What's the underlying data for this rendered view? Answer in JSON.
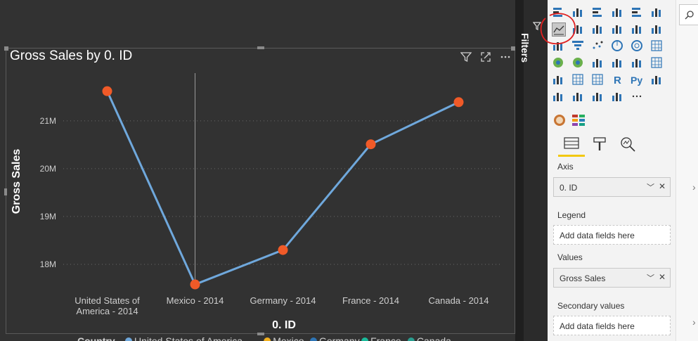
{
  "visual": {
    "title": "Gross Sales by 0. ID"
  },
  "chart_data": {
    "type": "line",
    "title": "Gross Sales by 0. ID",
    "xlabel": "0. ID",
    "ylabel": "Gross Sales",
    "categories": [
      "United States of America - 2014",
      "Mexico - 2014",
      "Germany - 2014",
      "France - 2014",
      "Canada - 2014"
    ],
    "category_lines": [
      [
        "United States of",
        "America - 2014"
      ],
      [
        "Mexico - 2014"
      ],
      [
        "Germany - 2014"
      ],
      [
        "France - 2014"
      ],
      [
        "Canada - 2014"
      ]
    ],
    "series": [
      {
        "name": "Gross Sales",
        "values": [
          21.62,
          17.58,
          18.3,
          20.51,
          21.39
        ]
      }
    ],
    "yticks": [
      18,
      19,
      20,
      21
    ],
    "ytick_labels": [
      "18M",
      "19M",
      "20M",
      "21M"
    ],
    "ylim": [
      17.5,
      22.1
    ],
    "grid": true,
    "line_color": "#6fa8dc",
    "marker_color": "#f05a28",
    "legend": {
      "placement": "bottom",
      "title": "Country",
      "items": [
        {
          "name": "United States of America",
          "color": "#6fa8dc"
        },
        {
          "name": "Mexico",
          "color": "#f2b01e"
        },
        {
          "name": "Germany",
          "color": "#2e75b6"
        },
        {
          "name": "France",
          "color": "#1abc9c"
        },
        {
          "name": "Canada",
          "color": "#2a9d8f"
        }
      ]
    }
  },
  "filters": {
    "label": "Filters"
  },
  "pane": {
    "axis_label": "Axis",
    "axis_field": "0. ID",
    "legend_label": "Legend",
    "legend_placeholder": "Add data fields here",
    "values_label": "Values",
    "values_field": "Gross Sales",
    "secondary_label": "Secondary values",
    "secondary_placeholder": "Add data fields here",
    "accent": "#f2c811",
    "annotation_color": "#e02020"
  }
}
